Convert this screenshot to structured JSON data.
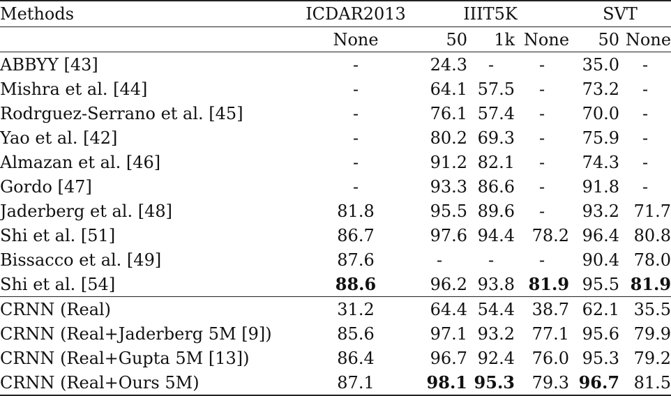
{
  "table": {
    "header": {
      "methods": "Methods",
      "icdar": "ICDAR2013",
      "iiit": "IIIT5K",
      "svt": "SVT"
    },
    "subheader": {
      "icdar_none": "None",
      "iiit_50": "50",
      "iiit_1k": "1k",
      "iiit_none": "None",
      "svt_50": "50",
      "svt_none": "None"
    },
    "rows": [
      {
        "method": "ABBYY [43]",
        "icdar": "-",
        "iiit50": "24.3",
        "iiit1k": "-",
        "iiitnone": "-",
        "svt50": "35.0",
        "svtnone": "-"
      },
      {
        "method": "Mishra et al. [44]",
        "icdar": "-",
        "iiit50": "64.1",
        "iiit1k": "57.5",
        "iiitnone": "-",
        "svt50": "73.2",
        "svtnone": "-"
      },
      {
        "method": "Rodrguez-Serrano et al. [45]",
        "icdar": "-",
        "iiit50": "76.1",
        "iiit1k": "57.4",
        "iiitnone": "-",
        "svt50": "70.0",
        "svtnone": "-"
      },
      {
        "method": "Yao et al. [42]",
        "icdar": "-",
        "iiit50": "80.2",
        "iiit1k": "69.3",
        "iiitnone": "-",
        "svt50": "75.9",
        "svtnone": "-"
      },
      {
        "method": "Almazan et al. [46]",
        "icdar": "-",
        "iiit50": "91.2",
        "iiit1k": "82.1",
        "iiitnone": "-",
        "svt50": "74.3",
        "svtnone": "-"
      },
      {
        "method": "Gordo [47]",
        "icdar": "-",
        "iiit50": "93.3",
        "iiit1k": "86.6",
        "iiitnone": "-",
        "svt50": "91.8",
        "svtnone": "-"
      },
      {
        "method": "Jaderberg et al. [48]",
        "icdar": "81.8",
        "iiit50": "95.5",
        "iiit1k": "89.6",
        "iiitnone": "-",
        "svt50": "93.2",
        "svtnone": "71.7"
      },
      {
        "method": "Shi et al. [51]",
        "icdar": "86.7",
        "iiit50": "97.6",
        "iiit1k": "94.4",
        "iiitnone": "78.2",
        "svt50": "96.4",
        "svtnone": "80.8"
      },
      {
        "method": "Bissacco et al. [49]",
        "icdar": "87.6",
        "iiit50": "-",
        "iiit1k": "-",
        "iiitnone": "-",
        "svt50": "90.4",
        "svtnone": "78.0"
      },
      {
        "method": "Shi et al. [54]",
        "icdar": "88.6",
        "iiit50": "96.2",
        "iiit1k": "93.8",
        "iiitnone": "81.9",
        "svt50": "95.5",
        "svtnone": "81.9"
      },
      {
        "method": "CRNN (Real)",
        "icdar": "31.2",
        "iiit50": "64.4",
        "iiit1k": "54.4",
        "iiitnone": "38.7",
        "svt50": "62.1",
        "svtnone": "35.5"
      },
      {
        "method": "CRNN (Real+Jaderberg 5M [9])",
        "icdar": "85.6",
        "iiit50": "97.1",
        "iiit1k": "93.2",
        "iiitnone": "77.1",
        "svt50": "95.6",
        "svtnone": "79.9"
      },
      {
        "method": "CRNN (Real+Gupta 5M [13])",
        "icdar": "86.4",
        "iiit50": "96.7",
        "iiit1k": "92.4",
        "iiitnone": "76.0",
        "svt50": "95.3",
        "svtnone": "79.2"
      },
      {
        "method": "CRNN (Real+Ours 5M)",
        "icdar": "87.1",
        "iiit50": "98.1",
        "iiit1k": "95.3",
        "iiitnone": "79.3",
        "svt50": "96.7",
        "svtnone": "81.5"
      }
    ]
  }
}
